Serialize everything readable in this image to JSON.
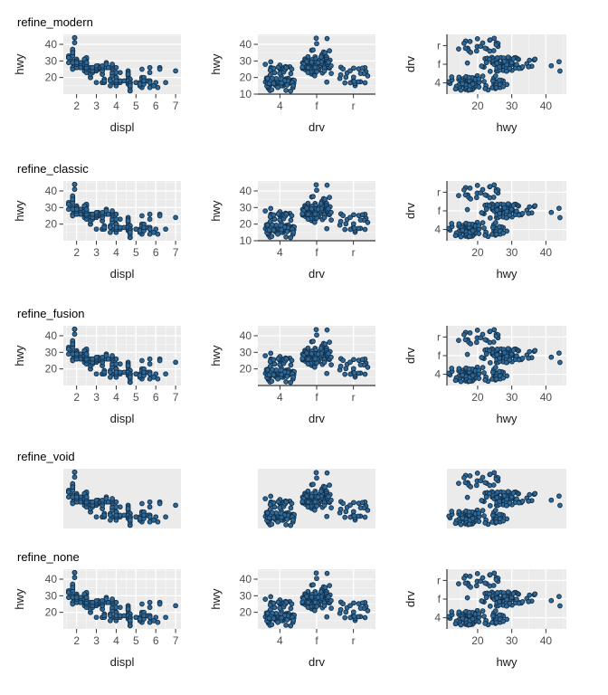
{
  "rows": [
    {
      "title": "refine_modern",
      "theme": "modern"
    },
    {
      "title": "refine_classic",
      "theme": "classic"
    },
    {
      "title": "refine_fusion",
      "theme": "fusion"
    },
    {
      "title": "refine_void",
      "theme": "void"
    },
    {
      "title": "refine_none",
      "theme": "none"
    }
  ],
  "chart_data": [
    {
      "type": "scatter",
      "x": "displ",
      "y": "hwy",
      "xlabel": "displ",
      "ylabel": "hwy",
      "xticks": [
        2,
        3,
        4,
        5,
        6,
        7
      ],
      "yticks": [
        20,
        30,
        40
      ],
      "x_minor": [
        1.5,
        2.5,
        3.5,
        4.5,
        5.5,
        6.5
      ],
      "y_minor": [
        15,
        25,
        35,
        45
      ],
      "xlim": [
        1.33,
        7.27
      ],
      "ylim": [
        10,
        46
      ],
      "grid": "theme-dependent",
      "legend": "none"
    },
    {
      "type": "scatter",
      "x": "drv",
      "y": "hwy",
      "jitter": true,
      "xlabel": "drv",
      "ylabel": "hwy",
      "x_categories": [
        "4",
        "f",
        "r"
      ],
      "yticks_per_row": [
        [
          10,
          20,
          30,
          40
        ],
        [
          10,
          20,
          30,
          40
        ],
        [
          20,
          30,
          40
        ],
        [],
        [
          20,
          30,
          40
        ]
      ],
      "y_minor": [
        15,
        25,
        35,
        45
      ],
      "ylim": [
        10,
        46
      ],
      "grid": "theme-dependent",
      "legend": "none"
    },
    {
      "type": "scatter",
      "x": "hwy",
      "y": "drv",
      "jitter": true,
      "xlabel": "hwy",
      "ylabel": "drv",
      "xticks": [
        20,
        30,
        40
      ],
      "x_minor": [
        15,
        25,
        35,
        45
      ],
      "y_categories_top_to_bottom": [
        "r",
        "f",
        "4"
      ],
      "xlim": [
        11,
        46
      ],
      "grid": "theme-dependent",
      "legend": "none"
    }
  ],
  "style": {
    "panel_bg": "#ebebeb",
    "grid_major": "#ffffff",
    "grid_minor": "rgba(255,255,255,0.65)",
    "axis_line": "#333333",
    "tick_mark": "#333333",
    "tick_label_color": "#4d4d4d",
    "axis_label_color": "#1a1a1a",
    "title_color": "#000000",
    "point_fill": "#2f6795",
    "point_stroke": "#122f4a"
  },
  "dataset": {
    "columns": [
      "displ",
      "hwy",
      "drv"
    ],
    "rows": [
      [
        1.8,
        29,
        "f"
      ],
      [
        1.8,
        29,
        "f"
      ],
      [
        2.0,
        31,
        "f"
      ],
      [
        2.0,
        30,
        "f"
      ],
      [
        2.8,
        26,
        "f"
      ],
      [
        2.8,
        26,
        "f"
      ],
      [
        3.1,
        27,
        "f"
      ],
      [
        1.8,
        26,
        "4"
      ],
      [
        1.8,
        25,
        "4"
      ],
      [
        2.0,
        28,
        "4"
      ],
      [
        2.0,
        27,
        "4"
      ],
      [
        2.8,
        25,
        "4"
      ],
      [
        2.8,
        25,
        "4"
      ],
      [
        3.1,
        25,
        "4"
      ],
      [
        3.1,
        25,
        "4"
      ],
      [
        2.8,
        24,
        "4"
      ],
      [
        3.1,
        25,
        "4"
      ],
      [
        4.2,
        23,
        "4"
      ],
      [
        5.3,
        20,
        "r"
      ],
      [
        5.3,
        15,
        "r"
      ],
      [
        5.3,
        20,
        "r"
      ],
      [
        5.7,
        17,
        "r"
      ],
      [
        6.0,
        17,
        "r"
      ],
      [
        5.7,
        26,
        "r"
      ],
      [
        5.7,
        23,
        "r"
      ],
      [
        6.2,
        26,
        "r"
      ],
      [
        6.2,
        25,
        "r"
      ],
      [
        7.0,
        24,
        "r"
      ],
      [
        5.3,
        14,
        "4"
      ],
      [
        5.3,
        19,
        "4"
      ],
      [
        5.7,
        14,
        "4"
      ],
      [
        6.5,
        17,
        "4"
      ],
      [
        2.4,
        30,
        "f"
      ],
      [
        2.4,
        29,
        "f"
      ],
      [
        3.1,
        26,
        "f"
      ],
      [
        3.5,
        29,
        "f"
      ],
      [
        3.6,
        26,
        "f"
      ],
      [
        2.4,
        24,
        "f"
      ],
      [
        3.0,
        24,
        "f"
      ],
      [
        3.3,
        22,
        "f"
      ],
      [
        3.3,
        22,
        "f"
      ],
      [
        3.3,
        24,
        "f"
      ],
      [
        3.3,
        24,
        "f"
      ],
      [
        3.3,
        17,
        "f"
      ],
      [
        3.8,
        22,
        "f"
      ],
      [
        3.8,
        21,
        "f"
      ],
      [
        3.8,
        23,
        "f"
      ],
      [
        4.0,
        23,
        "f"
      ],
      [
        3.7,
        19,
        "4"
      ],
      [
        3.7,
        18,
        "4"
      ],
      [
        3.9,
        17,
        "4"
      ],
      [
        3.9,
        17,
        "4"
      ],
      [
        4.7,
        19,
        "4"
      ],
      [
        4.7,
        19,
        "4"
      ],
      [
        4.7,
        12,
        "4"
      ],
      [
        5.2,
        17,
        "4"
      ],
      [
        5.2,
        15,
        "4"
      ],
      [
        3.9,
        17,
        "4"
      ],
      [
        4.7,
        17,
        "4"
      ],
      [
        4.7,
        12,
        "4"
      ],
      [
        4.7,
        17,
        "4"
      ],
      [
        5.2,
        16,
        "4"
      ],
      [
        5.7,
        18,
        "4"
      ],
      [
        5.9,
        15,
        "4"
      ],
      [
        4.7,
        17,
        "4"
      ],
      [
        4.7,
        12,
        "4"
      ],
      [
        4.7,
        17,
        "4"
      ],
      [
        4.7,
        16,
        "4"
      ],
      [
        4.7,
        12,
        "4"
      ],
      [
        5.2,
        15,
        "4"
      ],
      [
        5.2,
        16,
        "4"
      ],
      [
        5.7,
        17,
        "4"
      ],
      [
        5.9,
        15,
        "4"
      ],
      [
        4.7,
        17,
        "4"
      ],
      [
        4.6,
        17,
        "r"
      ],
      [
        5.4,
        17,
        "r"
      ],
      [
        5.4,
        18,
        "r"
      ],
      [
        4.0,
        17,
        "4"
      ],
      [
        4.0,
        19,
        "4"
      ],
      [
        4.0,
        17,
        "4"
      ],
      [
        4.0,
        19,
        "4"
      ],
      [
        4.6,
        19,
        "4"
      ],
      [
        5.0,
        17,
        "4"
      ],
      [
        4.2,
        17,
        "4"
      ],
      [
        4.2,
        17,
        "4"
      ],
      [
        4.6,
        16,
        "4"
      ],
      [
        4.6,
        18,
        "4"
      ],
      [
        4.6,
        17,
        "4"
      ],
      [
        5.4,
        17,
        "4"
      ],
      [
        5.4,
        17,
        "4"
      ],
      [
        3.8,
        26,
        "r"
      ],
      [
        3.8,
        25,
        "r"
      ],
      [
        4.0,
        26,
        "r"
      ],
      [
        4.6,
        24,
        "r"
      ],
      [
        4.6,
        21,
        "r"
      ],
      [
        4.6,
        22,
        "r"
      ],
      [
        4.6,
        23,
        "r"
      ],
      [
        4.6,
        22,
        "r"
      ],
      [
        5.4,
        20,
        "r"
      ],
      [
        1.6,
        33,
        "f"
      ],
      [
        1.6,
        32,
        "f"
      ],
      [
        1.6,
        32,
        "f"
      ],
      [
        1.6,
        29,
        "f"
      ],
      [
        1.6,
        32,
        "f"
      ],
      [
        1.8,
        34,
        "f"
      ],
      [
        1.8,
        36,
        "f"
      ],
      [
        1.8,
        36,
        "f"
      ],
      [
        2.0,
        29,
        "f"
      ],
      [
        2.4,
        26,
        "f"
      ],
      [
        2.4,
        27,
        "f"
      ],
      [
        2.4,
        30,
        "f"
      ],
      [
        2.4,
        31,
        "f"
      ],
      [
        2.5,
        26,
        "f"
      ],
      [
        2.5,
        29,
        "f"
      ],
      [
        3.3,
        26,
        "f"
      ],
      [
        2.0,
        26,
        "f"
      ],
      [
        2.0,
        27,
        "f"
      ],
      [
        2.0,
        30,
        "f"
      ],
      [
        2.0,
        29,
        "f"
      ],
      [
        2.7,
        26,
        "f"
      ],
      [
        2.7,
        24,
        "f"
      ],
      [
        2.7,
        24,
        "f"
      ],
      [
        3.0,
        17,
        "4"
      ],
      [
        3.7,
        15,
        "4"
      ],
      [
        4.0,
        17,
        "4"
      ],
      [
        4.0,
        16,
        "4"
      ],
      [
        4.0,
        20,
        "4"
      ],
      [
        4.7,
        19,
        "4"
      ],
      [
        4.7,
        14,
        "4"
      ],
      [
        6.1,
        14,
        "4"
      ],
      [
        4.0,
        15,
        "4"
      ],
      [
        4.2,
        18,
        "4"
      ],
      [
        4.4,
        18,
        "4"
      ],
      [
        4.6,
        18,
        "4"
      ],
      [
        5.4,
        17,
        "r"
      ],
      [
        5.4,
        16,
        "r"
      ],
      [
        5.4,
        18,
        "r"
      ],
      [
        4.0,
        17,
        "4"
      ],
      [
        4.0,
        19,
        "4"
      ],
      [
        4.6,
        18,
        "4"
      ],
      [
        5.0,
        17,
        "4"
      ],
      [
        2.4,
        29,
        "f"
      ],
      [
        2.4,
        31,
        "f"
      ],
      [
        2.5,
        31,
        "f"
      ],
      [
        2.5,
        32,
        "f"
      ],
      [
        3.5,
        27,
        "f"
      ],
      [
        3.5,
        26,
        "f"
      ],
      [
        3.0,
        26,
        "f"
      ],
      [
        3.0,
        25,
        "f"
      ],
      [
        3.5,
        28,
        "f"
      ],
      [
        3.3,
        17,
        "4"
      ],
      [
        3.3,
        17,
        "4"
      ],
      [
        4.0,
        20,
        "4"
      ],
      [
        5.6,
        18,
        "4"
      ],
      [
        3.1,
        26,
        "f"
      ],
      [
        3.8,
        26,
        "f"
      ],
      [
        3.8,
        27,
        "f"
      ],
      [
        3.8,
        28,
        "f"
      ],
      [
        5.3,
        25,
        "f"
      ],
      [
        2.5,
        26,
        "4"
      ],
      [
        2.5,
        25,
        "4"
      ],
      [
        2.5,
        27,
        "4"
      ],
      [
        2.5,
        25,
        "4"
      ],
      [
        2.5,
        26,
        "4"
      ],
      [
        2.5,
        23,
        "4"
      ],
      [
        2.2,
        26,
        "4"
      ],
      [
        2.2,
        29,
        "4"
      ],
      [
        2.5,
        25,
        "4"
      ],
      [
        2.5,
        27,
        "4"
      ],
      [
        2.5,
        27,
        "4"
      ],
      [
        2.5,
        25,
        "4"
      ],
      [
        2.5,
        26,
        "4"
      ],
      [
        2.5,
        26,
        "4"
      ],
      [
        2.7,
        20,
        "4"
      ],
      [
        2.7,
        20,
        "4"
      ],
      [
        3.4,
        19,
        "4"
      ],
      [
        3.4,
        17,
        "4"
      ],
      [
        4.0,
        20,
        "4"
      ],
      [
        4.7,
        17,
        "4"
      ],
      [
        2.2,
        26,
        "f"
      ],
      [
        2.2,
        27,
        "f"
      ],
      [
        2.4,
        28,
        "f"
      ],
      [
        2.4,
        31,
        "f"
      ],
      [
        3.0,
        26,
        "f"
      ],
      [
        3.0,
        26,
        "f"
      ],
      [
        3.5,
        28,
        "f"
      ],
      [
        2.2,
        26,
        "f"
      ],
      [
        2.2,
        26,
        "f"
      ],
      [
        2.4,
        30,
        "f"
      ],
      [
        2.4,
        31,
        "f"
      ],
      [
        3.0,
        26,
        "f"
      ],
      [
        3.0,
        27,
        "f"
      ],
      [
        3.3,
        27,
        "f"
      ],
      [
        1.8,
        30,
        "f"
      ],
      [
        1.8,
        33,
        "f"
      ],
      [
        1.8,
        35,
        "f"
      ],
      [
        1.8,
        37,
        "f"
      ],
      [
        1.8,
        35,
        "f"
      ],
      [
        4.7,
        17,
        "4"
      ],
      [
        5.7,
        18,
        "4"
      ],
      [
        2.7,
        22,
        "4"
      ],
      [
        2.7,
        22,
        "4"
      ],
      [
        2.7,
        22,
        "4"
      ],
      [
        3.4,
        19,
        "4"
      ],
      [
        3.4,
        18,
        "4"
      ],
      [
        4.0,
        20,
        "4"
      ],
      [
        4.0,
        18,
        "4"
      ],
      [
        4.7,
        17,
        "4"
      ],
      [
        4.7,
        17,
        "4"
      ],
      [
        4.7,
        16,
        "4"
      ],
      [
        4.7,
        15,
        "4"
      ],
      [
        5.7,
        17,
        "4"
      ],
      [
        2.0,
        29,
        "f"
      ],
      [
        2.0,
        26,
        "f"
      ],
      [
        2.0,
        28,
        "f"
      ],
      [
        2.0,
        29,
        "f"
      ],
      [
        2.8,
        24,
        "f"
      ],
      [
        1.9,
        44,
        "f"
      ],
      [
        2.0,
        29,
        "f"
      ],
      [
        2.0,
        26,
        "f"
      ],
      [
        2.0,
        29,
        "f"
      ],
      [
        2.0,
        29,
        "f"
      ],
      [
        2.5,
        29,
        "f"
      ],
      [
        2.5,
        29,
        "f"
      ],
      [
        2.8,
        23,
        "f"
      ],
      [
        2.8,
        24,
        "f"
      ],
      [
        1.9,
        44,
        "f"
      ],
      [
        1.9,
        41,
        "f"
      ],
      [
        2.0,
        29,
        "f"
      ],
      [
        2.0,
        26,
        "f"
      ],
      [
        2.5,
        28,
        "f"
      ],
      [
        2.5,
        29,
        "f"
      ],
      [
        1.8,
        29,
        "f"
      ],
      [
        1.8,
        29,
        "f"
      ],
      [
        2.0,
        28,
        "f"
      ],
      [
        2.0,
        29,
        "f"
      ],
      [
        2.8,
        26,
        "f"
      ],
      [
        2.8,
        26,
        "f"
      ],
      [
        3.6,
        26,
        "f"
      ]
    ]
  }
}
